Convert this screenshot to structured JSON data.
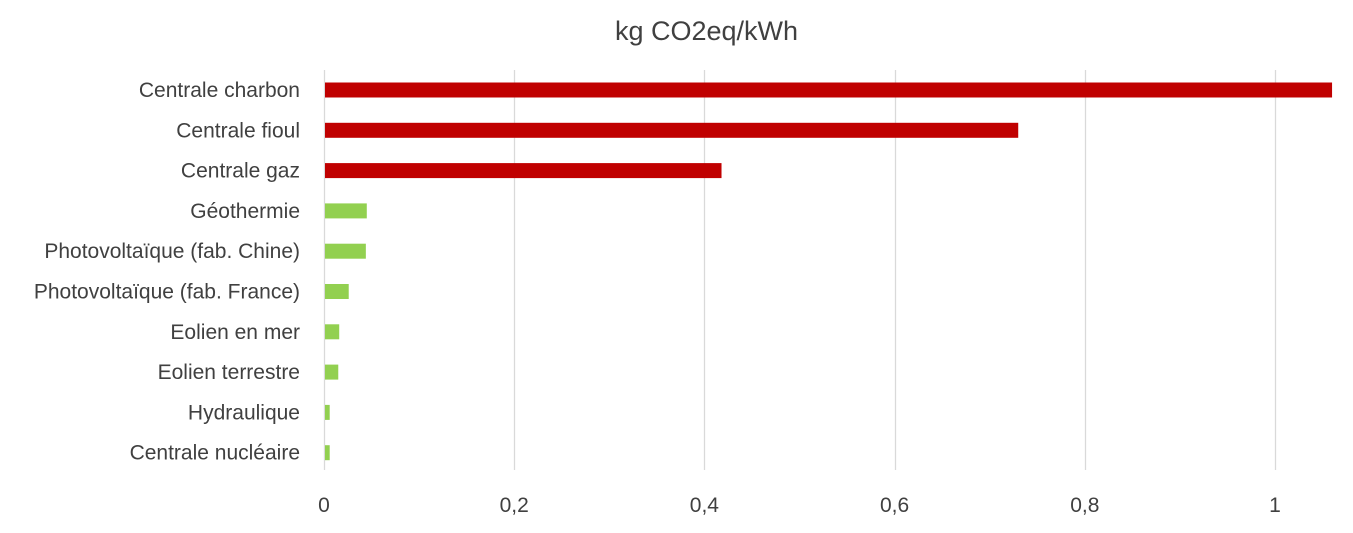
{
  "chart_data": {
    "type": "bar",
    "orientation": "horizontal",
    "title": "kg CO2eq/kWh",
    "xlabel": "",
    "ylabel": "",
    "categories": [
      "Centrale charbon",
      "Centrale fioul",
      "Centrale gaz",
      "Géothermie",
      "Photovoltaïque (fab. Chine)",
      "Photovoltaïque (fab. France)",
      "Eolien en mer",
      "Eolien terrestre",
      "Hydraulique",
      "Centrale nucléaire"
    ],
    "values": [
      1.06,
      0.73,
      0.418,
      0.045,
      0.044,
      0.026,
      0.016,
      0.015,
      0.006,
      0.006
    ],
    "bar_colors": [
      "#c00000",
      "#c00000",
      "#c00000",
      "#92d050",
      "#92d050",
      "#92d050",
      "#92d050",
      "#92d050",
      "#92d050",
      "#92d050"
    ],
    "xlim": [
      0,
      1.06
    ],
    "xticks": [
      0,
      0.2,
      0.4,
      0.6,
      0.8,
      1
    ],
    "xtick_labels": [
      "0",
      "0,2",
      "0,4",
      "0,6",
      "0,8",
      "1"
    ],
    "grid": true,
    "grid_color": "#d9d9d9",
    "legend": "none"
  }
}
